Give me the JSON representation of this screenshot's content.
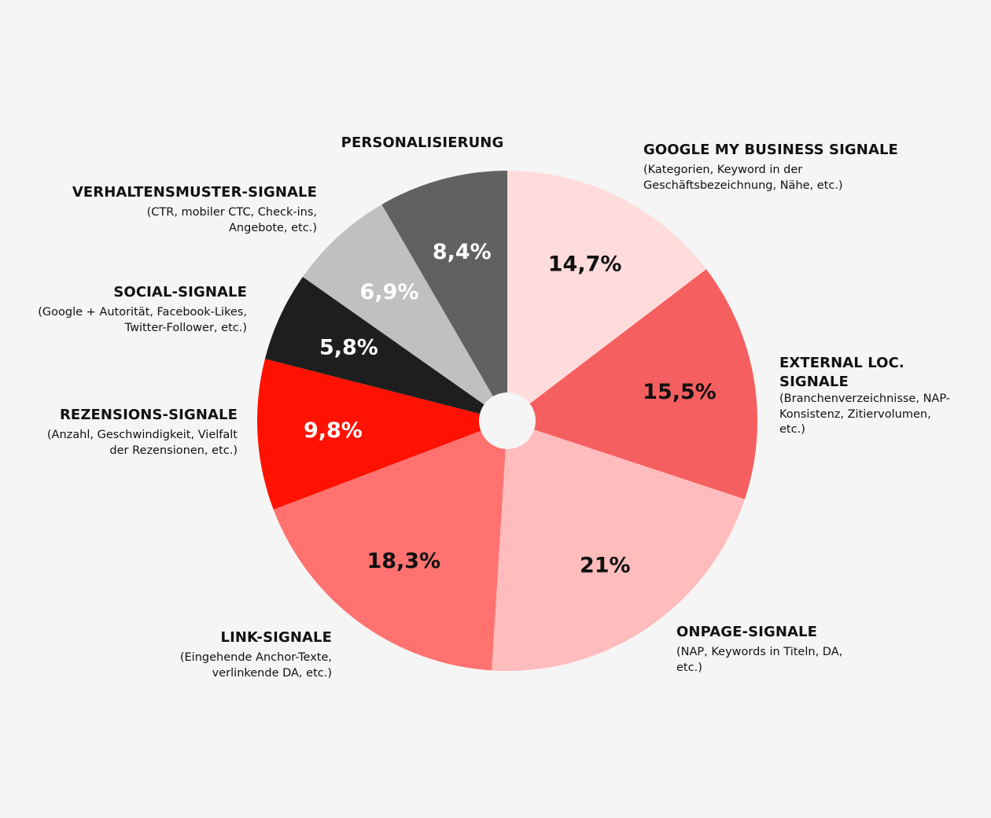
{
  "chart_data": {
    "type": "pie",
    "donut_hole": true,
    "start": "12 o'clock",
    "direction": "clockwise",
    "slices": [
      {
        "title": "GOOGLE MY BUSINESS SIGNALE",
        "desc": "(Kategorien, Keyword in der Geschäftsbezeichnung, Nähe, etc.)",
        "value": 14.7,
        "label": "14,7%",
        "color": "#ffdcdc",
        "text_color": "#111111"
      },
      {
        "title": "EXTERNAL LOC. SIGNALE",
        "desc": "(Branchenverzeichnisse, NAP-Konsistenz, Zitiervolumen, etc.)",
        "value": 15.5,
        "label": "15,5%",
        "color": "#f65f5f",
        "text_color": "#111111"
      },
      {
        "title": "ONPAGE-SIGNALE",
        "desc": "(NAP, Keywords in Titeln, DA, etc.)",
        "value": 21,
        "label": "21%",
        "color": "#ffbcbc",
        "text_color": "#111111"
      },
      {
        "title": "LINK-SIGNALE",
        "desc": "(Eingehende Anchor-Texte, verlinkende DA, etc.)",
        "value": 18.3,
        "label": "18,3%",
        "color": "#ff7270",
        "text_color": "#111111"
      },
      {
        "title": "REZENSIONS-SIGNALE",
        "desc": "(Anzahl, Geschwindigkeit, Vielfalt der Rezensionen, etc.)",
        "value": 9.8,
        "label": "9,8%",
        "color": "#ff1202",
        "text_color": "#ffffff"
      },
      {
        "title": "SOCIAL-SIGNALE",
        "desc": "(Google + Autorität, Facebook-Likes, Twitter-Follower, etc.)",
        "value": 5.8,
        "label": "5,8%",
        "color": "#1e1e1e",
        "text_color": "#ffffff"
      },
      {
        "title": "VERHALTENSMUSTER-SIGNALE",
        "desc": "(CTR, mobiler CTC, Check-ins, Angebote, etc.)",
        "value": 6.9,
        "label": "6,9%",
        "color": "#c0c0c0",
        "text_color": "#ffffff"
      },
      {
        "title": "PERSONALISIERUNG",
        "desc": "",
        "value": 8.4,
        "label": "8,4%",
        "color": "#616161",
        "text_color": "#ffffff"
      }
    ]
  }
}
